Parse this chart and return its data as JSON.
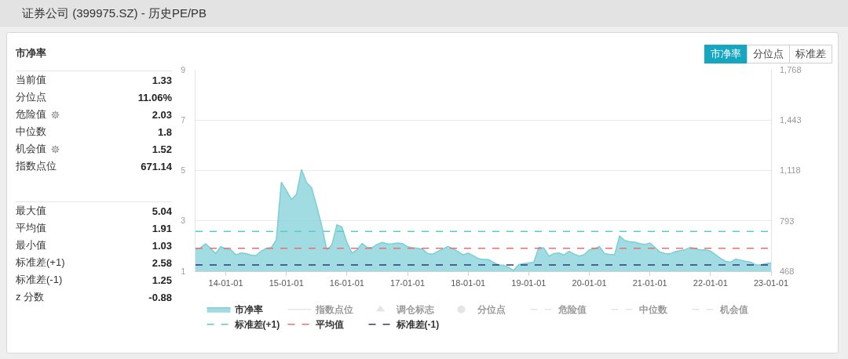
{
  "chart_data": [
    {
      "type": "other",
      "title": "市净率",
      "annotations": [
        "当前值",
        "1.33",
        "分位点",
        "11.06%",
        "危险值",
        "2.03",
        "中位数",
        "1.8",
        "机会值",
        "1.52",
        "指数点位",
        "671.14",
        "最大值",
        "5.04",
        "平均值",
        "1.91",
        "最小值",
        "1.03",
        "标准差(+1)",
        "2.58",
        "标准差(-1)",
        "1.25",
        "z 分数",
        "-0.88"
      ]
    },
    {
      "type": "area",
      "title": "证券公司 (399975.SZ) - 历史PE/PB",
      "annotations": [
        "市净率",
        "分位点",
        "标准差"
      ],
      "categories": [
        null,
        null,
        null,
        null,
        null,
        null,
        "14-01-01",
        null,
        null,
        null,
        null,
        null,
        null,
        null,
        null,
        null,
        null,
        null,
        "15-01-01",
        null,
        null,
        null,
        null,
        null,
        null,
        null,
        null,
        null,
        null,
        null,
        "16-01-01",
        null,
        null,
        null,
        null,
        null,
        null,
        null,
        null,
        null,
        null,
        null,
        "17-01-01",
        null,
        null,
        null,
        null,
        null,
        null,
        null,
        null,
        null,
        null,
        null,
        "18-01-01",
        null,
        null,
        null,
        null,
        null,
        null,
        null,
        null,
        null,
        null,
        null,
        "19-01-01",
        null,
        null,
        null,
        null,
        null,
        null,
        null,
        null,
        null,
        null,
        null,
        "20-01-01",
        null,
        null,
        null,
        null,
        null,
        null,
        null,
        null,
        null,
        null,
        null,
        "21-01-01",
        null,
        null,
        null,
        null,
        null,
        null,
        null,
        null,
        null,
        null,
        null,
        "22-01-01",
        null,
        null,
        null,
        null,
        null,
        null,
        null,
        null,
        null,
        null,
        null,
        "23-01-01"
      ],
      "ylim": [
        1,
        9
      ],
      "yticks": [
        1,
        3,
        5,
        7,
        9
      ],
      "y2lim": [
        468,
        1768
      ],
      "y2ticks": [
        468,
        793,
        {
          "value": 1118,
          "label": "1,118"
        },
        {
          "value": 1443,
          "label": "1,443"
        },
        {
          "value": 1768,
          "label": "1,768"
        }
      ],
      "grid": "y",
      "legend": "bottom",
      "series": [
        {
          "name": "市净率",
          "color": "#7ccfd5",
          "values": [
            1.88,
            1.93,
            2.09,
            1.91,
            1.7,
            1.98,
            1.88,
            1.85,
            1.65,
            1.72,
            1.7,
            1.64,
            1.62,
            1.8,
            1.9,
            1.94,
            2.24,
            4.54,
            4.2,
            3.85,
            4.05,
            5.04,
            4.52,
            4.31,
            3.59,
            2.81,
            1.85,
            2.04,
            2.84,
            2.76,
            2.14,
            1.72,
            1.85,
            2.1,
            1.95,
            1.94,
            2.07,
            2.14,
            2.08,
            2.09,
            2.12,
            2.1,
            1.97,
            1.93,
            1.91,
            1.87,
            1.7,
            1.68,
            1.79,
            1.88,
            1.98,
            1.9,
            1.78,
            1.65,
            1.72,
            1.62,
            1.5,
            1.47,
            1.47,
            1.35,
            1.25,
            1.24,
            1.16,
            1.03,
            1.26,
            1.3,
            1.33,
            1.36,
            1.95,
            1.92,
            1.6,
            1.7,
            1.72,
            1.64,
            1.79,
            1.68,
            1.6,
            1.66,
            1.85,
            1.89,
            1.98,
            1.7,
            1.67,
            1.65,
            2.4,
            2.22,
            2.17,
            2.15,
            2.1,
            2.06,
            2.12,
            1.95,
            1.76,
            1.7,
            1.69,
            1.78,
            1.82,
            1.86,
            1.94,
            1.9,
            1.84,
            1.85,
            1.8,
            1.66,
            1.51,
            1.39,
            1.36,
            1.48,
            1.44,
            1.39,
            1.36,
            1.25,
            1.26,
            1.3,
            1.33
          ]
        },
        {
          "name": "指数点位",
          "type": "line",
          "axis": "y2",
          "color": "#cccccc",
          "values": [
            null,
            null,
            null,
            null,
            null,
            null,
            null,
            null,
            null,
            null,
            null,
            null,
            null,
            null,
            null,
            null,
            null,
            null,
            null,
            null,
            null,
            null,
            null,
            null,
            null,
            null,
            null,
            null,
            null,
            null,
            null,
            null,
            null,
            null,
            null,
            null,
            null,
            null,
            null,
            null,
            null,
            null,
            null,
            null,
            null,
            null,
            null,
            null,
            null,
            null,
            null,
            null,
            null,
            null,
            null,
            null,
            null,
            null,
            null,
            null,
            null,
            null,
            null,
            null,
            null,
            null,
            null,
            null,
            null,
            null,
            null,
            null,
            null,
            null,
            null,
            null,
            null,
            null,
            null,
            null,
            null,
            null,
            null,
            null,
            null,
            null,
            null,
            null,
            null,
            null,
            null,
            null,
            null,
            null,
            null,
            null,
            null,
            null,
            null,
            null,
            null,
            null,
            null,
            null,
            null,
            null,
            null,
            null,
            null,
            null,
            null,
            null,
            null,
            null,
            null
          ]
        },
        {
          "name": "调仓标志",
          "type": "scatter",
          "marker": "triangle",
          "color": "#cccccc",
          "values": [
            null,
            null,
            null,
            null,
            null,
            null,
            null,
            null,
            null,
            null,
            null,
            null,
            null,
            null,
            null,
            null,
            null,
            null,
            null,
            null,
            null,
            null,
            null,
            null,
            null,
            null,
            null,
            null,
            null,
            null,
            null,
            null,
            null,
            null,
            null,
            null,
            null,
            null,
            null,
            null,
            null,
            null,
            null,
            null,
            null,
            null,
            null,
            null,
            null,
            null,
            null,
            null,
            null,
            null,
            null,
            null,
            null,
            null,
            null,
            null,
            null,
            null,
            null,
            null,
            null,
            null,
            null,
            null,
            null,
            null,
            null,
            null,
            null,
            null,
            null,
            null,
            null,
            null,
            null,
            null,
            null,
            null,
            null,
            null,
            null,
            null,
            null,
            null,
            null,
            null,
            null,
            null,
            null,
            null,
            null,
            null,
            null,
            null,
            null,
            null,
            null,
            null,
            null,
            null,
            null,
            null,
            null,
            null,
            null,
            null,
            null,
            null,
            null,
            null,
            null
          ]
        },
        {
          "name": "分位点",
          "type": "scatter",
          "marker": "circle",
          "color": "#cccccc",
          "values": [
            null,
            null,
            null,
            null,
            null,
            null,
            null,
            null,
            null,
            null,
            null,
            null,
            null,
            null,
            null,
            null,
            null,
            null,
            null,
            null,
            null,
            null,
            null,
            null,
            null,
            null,
            null,
            null,
            null,
            null,
            null,
            null,
            null,
            null,
            null,
            null,
            null,
            null,
            null,
            null,
            null,
            null,
            null,
            null,
            null,
            null,
            null,
            null,
            null,
            null,
            null,
            null,
            null,
            null,
            null,
            null,
            null,
            null,
            null,
            null,
            null,
            null,
            null,
            null,
            null,
            null,
            null,
            null,
            null,
            null,
            null,
            null,
            null,
            null,
            null,
            null,
            null,
            null,
            null,
            null,
            null,
            null,
            null,
            null,
            null,
            null,
            null,
            null,
            null,
            null,
            null,
            null,
            null,
            null,
            null,
            null,
            null,
            null,
            null,
            null,
            null,
            null,
            null,
            null,
            null,
            null,
            null,
            null,
            null,
            null,
            null,
            null,
            null,
            null,
            null
          ]
        },
        {
          "name": "危险值",
          "type": "line",
          "line_style": "dashed",
          "color": "#cccccc",
          "values": [
            null,
            null,
            null,
            null,
            null,
            null,
            null,
            null,
            null,
            null,
            null,
            null,
            null,
            null,
            null,
            null,
            null,
            null,
            null,
            null,
            null,
            null,
            null,
            null,
            null,
            null,
            null,
            null,
            null,
            null,
            null,
            null,
            null,
            null,
            null,
            null,
            null,
            null,
            null,
            null,
            null,
            null,
            null,
            null,
            null,
            null,
            null,
            null,
            null,
            null,
            null,
            null,
            null,
            null,
            null,
            null,
            null,
            null,
            null,
            null,
            null,
            null,
            null,
            null,
            null,
            null,
            null,
            null,
            null,
            null,
            null,
            null,
            null,
            null,
            null,
            null,
            null,
            null,
            null,
            null,
            null,
            null,
            null,
            null,
            null,
            null,
            null,
            null,
            null,
            null,
            null,
            null,
            null,
            null,
            null,
            null,
            null,
            null,
            null,
            null,
            null,
            null,
            null,
            null,
            null,
            null,
            null,
            null,
            null,
            null,
            null,
            null,
            null,
            null,
            null
          ]
        },
        {
          "name": "中位数",
          "type": "line",
          "line_style": "dashed",
          "color": "#cccccc",
          "values": [
            null,
            null,
            null,
            null,
            null,
            null,
            null,
            null,
            null,
            null,
            null,
            null,
            null,
            null,
            null,
            null,
            null,
            null,
            null,
            null,
            null,
            null,
            null,
            null,
            null,
            null,
            null,
            null,
            null,
            null,
            null,
            null,
            null,
            null,
            null,
            null,
            null,
            null,
            null,
            null,
            null,
            null,
            null,
            null,
            null,
            null,
            null,
            null,
            null,
            null,
            null,
            null,
            null,
            null,
            null,
            null,
            null,
            null,
            null,
            null,
            null,
            null,
            null,
            null,
            null,
            null,
            null,
            null,
            null,
            null,
            null,
            null,
            null,
            null,
            null,
            null,
            null,
            null,
            null,
            null,
            null,
            null,
            null,
            null,
            null,
            null,
            null,
            null,
            null,
            null,
            null,
            null,
            null,
            null,
            null,
            null,
            null,
            null,
            null,
            null,
            null,
            null,
            null,
            null,
            null,
            null,
            null,
            null,
            null,
            null,
            null,
            null,
            null,
            null,
            null
          ]
        },
        {
          "name": "机会值",
          "type": "line",
          "line_style": "dashed",
          "color": "#cccccc",
          "values": [
            null,
            null,
            null,
            null,
            null,
            null,
            null,
            null,
            null,
            null,
            null,
            null,
            null,
            null,
            null,
            null,
            null,
            null,
            null,
            null,
            null,
            null,
            null,
            null,
            null,
            null,
            null,
            null,
            null,
            null,
            null,
            null,
            null,
            null,
            null,
            null,
            null,
            null,
            null,
            null,
            null,
            null,
            null,
            null,
            null,
            null,
            null,
            null,
            null,
            null,
            null,
            null,
            null,
            null,
            null,
            null,
            null,
            null,
            null,
            null,
            null,
            null,
            null,
            null,
            null,
            null,
            null,
            null,
            null,
            null,
            null,
            null,
            null,
            null,
            null,
            null,
            null,
            null,
            null,
            null,
            null,
            null,
            null,
            null,
            null,
            null,
            null,
            null,
            null,
            null,
            null,
            null,
            null,
            null,
            null,
            null,
            null,
            null,
            null,
            null,
            null,
            null,
            null,
            null,
            null,
            null,
            null,
            null,
            null,
            null,
            null,
            null,
            null,
            null,
            null
          ]
        }
      ],
      "ref_lines": [
        {
          "axis": "y",
          "value": 2.58,
          "label": "标准差(+1)",
          "color": "#5ccbc6",
          "line_style": "dashed"
        },
        {
          "axis": "y",
          "value": 1.91,
          "label": "平均值",
          "color": "#e8706d",
          "line_style": "dashed"
        },
        {
          "axis": "y",
          "value": 1.25,
          "label": "标准差(-1)",
          "color": "#2e3a7c",
          "line_style": "dashed"
        }
      ]
    }
  ]
}
